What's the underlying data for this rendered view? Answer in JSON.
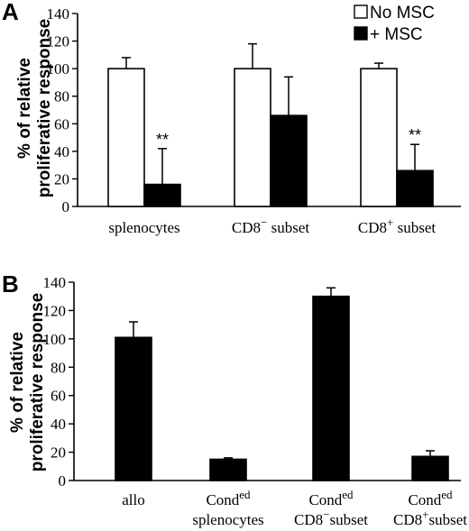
{
  "chart_data": [
    {
      "panel": "A",
      "type": "bar",
      "ylabel": [
        "% of relative",
        "proliferative response"
      ],
      "ylim": [
        0,
        140
      ],
      "yticks": [
        0,
        20,
        40,
        60,
        80,
        100,
        120,
        140
      ],
      "legend_position": "top-right",
      "categories": [
        {
          "main": "splenocytes",
          "sup": ""
        },
        {
          "main": "CD8",
          "sup": "−",
          "tail": " subset"
        },
        {
          "main": "CD8",
          "sup": "+",
          "tail": " subset"
        }
      ],
      "series": [
        {
          "name": "No MSC",
          "color": "#ffffff",
          "values": [
            100,
            100,
            100
          ],
          "errors": [
            8,
            18,
            4
          ]
        },
        {
          "name": "+ MSC",
          "color": "#000000",
          "values": [
            16,
            66,
            26
          ],
          "errors": [
            26,
            28,
            19
          ]
        }
      ],
      "annotations": [
        {
          "category": 0,
          "series": 1,
          "text": "**"
        },
        {
          "category": 2,
          "series": 1,
          "text": "**"
        }
      ]
    },
    {
      "panel": "B",
      "type": "bar",
      "ylabel": [
        "% of relative",
        "proliferative response"
      ],
      "ylim": [
        0,
        140
      ],
      "yticks": [
        0,
        20,
        40,
        60,
        80,
        100,
        120,
        140
      ],
      "categories": [
        {
          "line1": "allo",
          "line2": ""
        },
        {
          "line1": "Cond",
          "line1_sup": "ed",
          "line2": "splenocytes"
        },
        {
          "line1": "Cond",
          "line1_sup": "ed",
          "line2": "CD8",
          "line2_sup": "−",
          "line2_tail": "subset"
        },
        {
          "line1": "Cond",
          "line1_sup": "ed",
          "line2": "CD8",
          "line2_sup": "+",
          "line2_tail": "subset"
        }
      ],
      "series": [
        {
          "name": "",
          "color": "#000000",
          "values": [
            101,
            15,
            130,
            17
          ],
          "errors": [
            11,
            1,
            6,
            4
          ]
        }
      ]
    }
  ]
}
